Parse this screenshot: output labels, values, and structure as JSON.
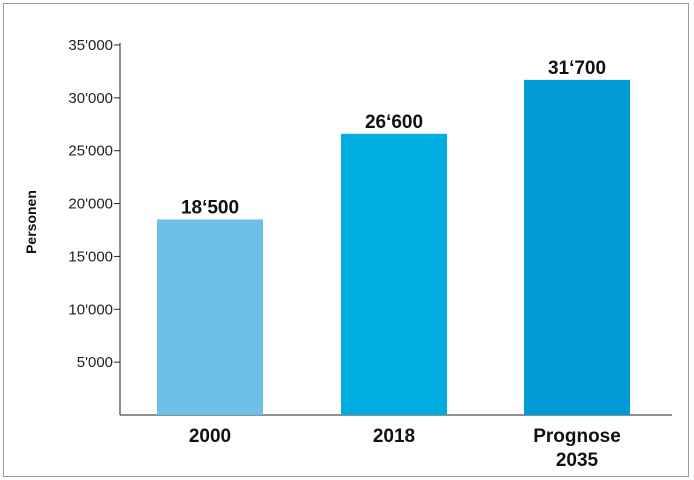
{
  "chart_data": {
    "type": "bar",
    "ylabel": "Personen",
    "ylim": [
      0,
      35000
    ],
    "yticks": [
      {
        "value": 5000,
        "label": "5'000"
      },
      {
        "value": 10000,
        "label": "10'000"
      },
      {
        "value": 15000,
        "label": "15'000"
      },
      {
        "value": 20000,
        "label": "20'000"
      },
      {
        "value": 25000,
        "label": "25'000"
      },
      {
        "value": 30000,
        "label": "30'000"
      },
      {
        "value": 35000,
        "label": "35'000"
      }
    ],
    "bars": [
      {
        "category": [
          "2000"
        ],
        "value": 18500,
        "label": "18‘500",
        "color": "#6cc0e5"
      },
      {
        "category": [
          "2018"
        ],
        "value": 26600,
        "label": "26‘600",
        "color": "#00ade0"
      },
      {
        "category": [
          "Prognose",
          "2035"
        ],
        "value": 31700,
        "label": "31‘700",
        "color": "#009bd6"
      }
    ],
    "grid": false,
    "legend": "none"
  }
}
